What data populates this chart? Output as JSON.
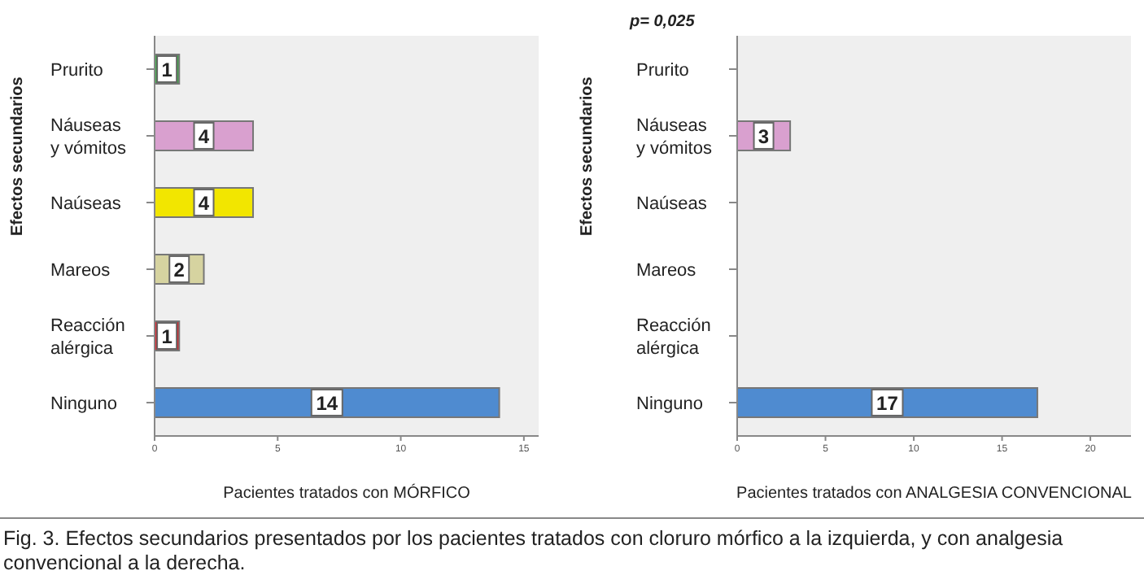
{
  "chart_data": [
    {
      "type": "bar",
      "orientation": "horizontal",
      "categories": [
        "Prurito",
        "Náuseas\ny vómitos",
        "Naúseas",
        "Mareos",
        "Reacción\nalérgica",
        "Ninguno"
      ],
      "values": [
        1,
        4,
        4,
        2,
        1,
        14
      ],
      "colors": [
        "#3fae49",
        "#d9a0cf",
        "#f2e600",
        "#d6d3a0",
        "#e0202a",
        "#4f8bd0"
      ],
      "xlabel": "Pacientes tratados con MÓRFICO",
      "ylabel": "Efectos secundarios",
      "xlim": [
        0,
        15.6
      ],
      "xticks": [
        0,
        5,
        10,
        15
      ],
      "data_labels": true,
      "legend": false,
      "grid": false,
      "annotations": [
        "Fig. 3. Efectos secundarios presentados por los pacientes tratados con cloruro mórfico a la izquierda, y con analgesia convencional a la derecha."
      ]
    },
    {
      "type": "bar",
      "orientation": "horizontal",
      "categories": [
        "Prurito",
        "Náuseas\ny vómitos",
        "Naúseas",
        "Mareos",
        "Reacción\nalérgica",
        "Ninguno"
      ],
      "values": [
        0,
        3,
        0,
        0,
        0,
        17
      ],
      "colors": [
        "#3fae49",
        "#d9a0cf",
        "#f2e600",
        "#d6d3a0",
        "#e0202a",
        "#4f8bd0"
      ],
      "value_labels": [
        null,
        "3",
        null,
        null,
        null,
        "17"
      ],
      "xlabel": "Pacientes tratados con ANALGESIA CONVENCIONAL",
      "ylabel": "Efectos secundarios",
      "xlim": [
        0,
        22.3
      ],
      "xticks": [
        0,
        5,
        10,
        15,
        20
      ],
      "legend": false,
      "grid": false,
      "annotations": [
        "p= 0,025"
      ]
    }
  ]
}
